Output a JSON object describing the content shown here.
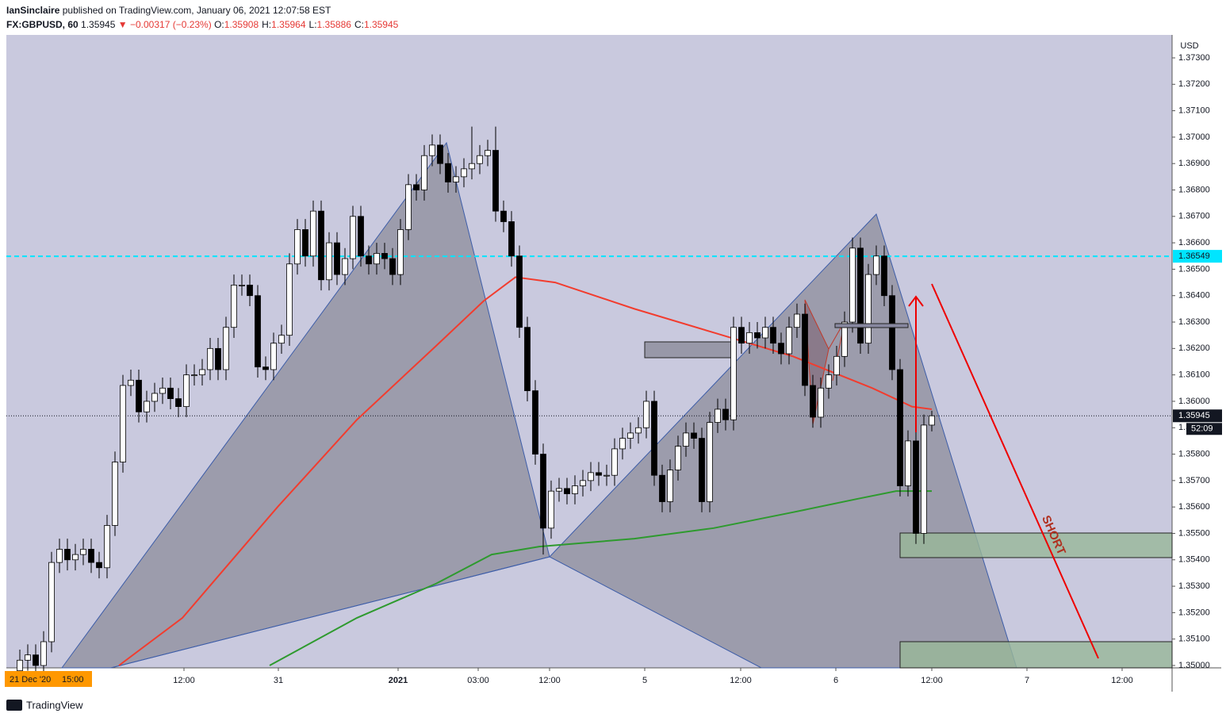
{
  "header": {
    "author": "IanSinclaire",
    "published": "published on TradingView.com, January 06, 2021 12:07:58 EST",
    "symbol": "FX:GBPUSD, 60",
    "last": "1.35945",
    "change": "▼ −0.00317 (−0.23%)",
    "ohlc": [
      {
        "label": "O:",
        "value": "1.35908"
      },
      {
        "label": "H:",
        "value": "1.35964"
      },
      {
        "label": "L:",
        "value": "1.35886"
      },
      {
        "label": "C:",
        "value": "1.35945"
      }
    ]
  },
  "chart_data": {
    "type": "candlestick",
    "currency": "USD",
    "up_color": "#ffffff",
    "down_color": "#000000",
    "xlim": [
      -1.7,
      145.3
    ],
    "ylim": [
      1.34991,
      1.37387
    ],
    "xticks": [
      {
        "value": 20.7,
        "label": "12:00"
      },
      {
        "value": 32.6,
        "label": "31"
      },
      {
        "value": 47.7,
        "label": "2021"
      },
      {
        "value": 57.8,
        "label": "03:00"
      },
      {
        "value": 66.8,
        "label": "12:00"
      },
      {
        "value": 78.8,
        "label": "5"
      },
      {
        "value": 90.9,
        "label": "12:00"
      },
      {
        "value": 102.9,
        "label": "6"
      },
      {
        "value": 115,
        "label": "12:00"
      },
      {
        "value": 127,
        "label": "7"
      },
      {
        "value": 139,
        "label": "12:00"
      }
    ],
    "yticks": [
      {
        "value": 1.35,
        "label": "1.35000"
      },
      {
        "value": 1.351,
        "label": "1.35100"
      },
      {
        "value": 1.352,
        "label": "1.35200"
      },
      {
        "value": 1.353,
        "label": "1.35300"
      },
      {
        "value": 1.354,
        "label": "1.35400"
      },
      {
        "value": 1.355,
        "label": "1.35500"
      },
      {
        "value": 1.356,
        "label": "1.35600"
      },
      {
        "value": 1.357,
        "label": "1.35700"
      },
      {
        "value": 1.358,
        "label": "1.35800"
      },
      {
        "value": 1.359,
        "label": "1.35900"
      },
      {
        "value": 1.36,
        "label": "1.36000"
      },
      {
        "value": 1.361,
        "label": "1.36100"
      },
      {
        "value": 1.362,
        "label": "1.36200"
      },
      {
        "value": 1.363,
        "label": "1.36300"
      },
      {
        "value": 1.364,
        "label": "1.36400"
      },
      {
        "value": 1.365,
        "label": "1.36500"
      },
      {
        "value": 1.366,
        "label": "1.36600"
      },
      {
        "value": 1.367,
        "label": "1.36700"
      },
      {
        "value": 1.368,
        "label": "1.36800"
      },
      {
        "value": 1.369,
        "label": "1.36900"
      },
      {
        "value": 1.37,
        "label": "1.37000"
      },
      {
        "value": 1.371,
        "label": "1.37100"
      },
      {
        "value": 1.372,
        "label": "1.37200"
      },
      {
        "value": 1.373,
        "label": "1.37300"
      }
    ],
    "open": [
      1.3498,
      1.3502,
      1.3504,
      1.35,
      1.3509,
      1.3539,
      1.3544,
      1.354,
      1.3542,
      1.3544,
      1.3539,
      1.3537,
      1.3553,
      1.3577,
      1.3606,
      1.3608,
      1.3596,
      1.36,
      1.3603,
      1.3605,
      1.3601,
      1.3598,
      1.361,
      1.361,
      1.3612,
      1.362,
      1.3612,
      1.3628,
      1.3644,
      1.3644,
      1.364,
      1.3613,
      1.3612,
      1.3622,
      1.3625,
      1.3652,
      1.3665,
      1.3655,
      1.3672,
      1.3646,
      1.366,
      1.3648,
      1.3654,
      1.367,
      1.3655,
      1.3652,
      1.3656,
      1.3654,
      1.3648,
      1.3665,
      1.3682,
      1.368,
      1.3693,
      1.3697,
      1.369,
      1.3683,
      1.3685,
      1.3688,
      1.369,
      1.3693,
      1.3695,
      1.3672,
      1.3668,
      1.3655,
      1.3628,
      1.3604,
      1.358,
      1.3552,
      1.3566,
      1.3567,
      1.3565,
      1.3568,
      1.357,
      1.3573,
      1.3572,
      1.3572,
      1.3582,
      1.3586,
      1.3588,
      1.359,
      1.36,
      1.3572,
      1.3562,
      1.3574,
      1.3583,
      1.3588,
      1.3586,
      1.3562,
      1.3592,
      1.3597,
      1.3593,
      1.3628,
      1.3622,
      1.3626,
      1.3624,
      1.3628,
      1.3622,
      1.3618,
      1.3628,
      1.3633,
      1.3606,
      1.3594,
      1.3605,
      1.361,
      1.3617,
      1.363,
      1.3658,
      1.3622,
      1.3648,
      1.3655,
      1.364,
      1.3612,
      1.3568,
      1.3585,
      1.355,
      1.3591
    ],
    "high": [
      1.3506,
      1.3508,
      1.3508,
      1.3513,
      1.3543,
      1.3548,
      1.3548,
      1.3546,
      1.3548,
      1.3548,
      1.3543,
      1.3557,
      1.3581,
      1.361,
      1.3612,
      1.3612,
      1.3604,
      1.3607,
      1.3609,
      1.3609,
      1.3605,
      1.3614,
      1.3614,
      1.3616,
      1.3624,
      1.3624,
      1.3632,
      1.3648,
      1.3648,
      1.3648,
      1.3644,
      1.3617,
      1.3626,
      1.3629,
      1.3656,
      1.3669,
      1.3669,
      1.3676,
      1.3676,
      1.3664,
      1.3664,
      1.3658,
      1.3674,
      1.3674,
      1.3659,
      1.366,
      1.366,
      1.3658,
      1.3669,
      1.3686,
      1.3686,
      1.3697,
      1.3701,
      1.3701,
      1.3694,
      1.3689,
      1.3692,
      1.3704,
      1.3697,
      1.3699,
      1.3704,
      1.3676,
      1.3672,
      1.3659,
      1.3632,
      1.3608,
      1.3584,
      1.357,
      1.3571,
      1.3571,
      1.3572,
      1.3574,
      1.3577,
      1.3577,
      1.3576,
      1.3586,
      1.359,
      1.3592,
      1.3594,
      1.3604,
      1.3604,
      1.3576,
      1.3578,
      1.3587,
      1.3592,
      1.3592,
      1.359,
      1.3596,
      1.3601,
      1.3601,
      1.3632,
      1.3632,
      1.363,
      1.363,
      1.3632,
      1.3632,
      1.3626,
      1.3632,
      1.3637,
      1.3637,
      1.361,
      1.3609,
      1.3614,
      1.3621,
      1.3634,
      1.3662,
      1.3662,
      1.3652,
      1.3659,
      1.3659,
      1.3644,
      1.3616,
      1.3589,
      1.3589,
      1.3595,
      1.35964
    ],
    "low": [
      1.3494,
      1.3498,
      1.3496,
      1.3496,
      1.3505,
      1.3535,
      1.3536,
      1.3536,
      1.3538,
      1.3535,
      1.3533,
      1.3533,
      1.3549,
      1.3573,
      1.3602,
      1.3592,
      1.3592,
      1.3596,
      1.3599,
      1.3597,
      1.3594,
      1.3594,
      1.3606,
      1.3606,
      1.3608,
      1.3608,
      1.3608,
      1.3624,
      1.364,
      1.3636,
      1.3609,
      1.3608,
      1.3608,
      1.3618,
      1.3621,
      1.3648,
      1.3651,
      1.3651,
      1.3642,
      1.3642,
      1.3644,
      1.3644,
      1.365,
      1.3651,
      1.3648,
      1.3648,
      1.365,
      1.3644,
      1.3644,
      1.3661,
      1.3676,
      1.3676,
      1.3689,
      1.3686,
      1.3679,
      1.3679,
      1.3681,
      1.3684,
      1.3686,
      1.3689,
      1.3668,
      1.3664,
      1.3651,
      1.3624,
      1.36,
      1.3576,
      1.3542,
      1.3548,
      1.3562,
      1.3561,
      1.3561,
      1.3564,
      1.3566,
      1.3568,
      1.3568,
      1.3568,
      1.3578,
      1.3582,
      1.3584,
      1.3586,
      1.3568,
      1.3558,
      1.3558,
      1.357,
      1.3579,
      1.3582,
      1.3558,
      1.3558,
      1.3588,
      1.3589,
      1.3589,
      1.3618,
      1.3618,
      1.362,
      1.362,
      1.3618,
      1.3614,
      1.3614,
      1.3624,
      1.3602,
      1.359,
      1.359,
      1.3601,
      1.3606,
      1.3613,
      1.3626,
      1.3618,
      1.3618,
      1.3644,
      1.3636,
      1.3608,
      1.3564,
      1.3564,
      1.3546,
      1.3546,
      1.35886
    ],
    "close": [
      1.3502,
      1.3504,
      1.35,
      1.3509,
      1.3539,
      1.3544,
      1.354,
      1.3542,
      1.3544,
      1.3539,
      1.3537,
      1.3553,
      1.3577,
      1.3606,
      1.3608,
      1.3596,
      1.36,
      1.3603,
      1.3605,
      1.3601,
      1.3598,
      1.361,
      1.361,
      1.3612,
      1.362,
      1.3612,
      1.3628,
      1.3644,
      1.3644,
      1.364,
      1.3613,
      1.3612,
      1.3622,
      1.3625,
      1.3652,
      1.3665,
      1.3655,
      1.3672,
      1.3646,
      1.366,
      1.3648,
      1.3654,
      1.367,
      1.3655,
      1.3652,
      1.3656,
      1.3654,
      1.3648,
      1.3665,
      1.3682,
      1.368,
      1.3693,
      1.3697,
      1.369,
      1.3683,
      1.3685,
      1.3688,
      1.369,
      1.3693,
      1.3695,
      1.3672,
      1.3668,
      1.3655,
      1.3628,
      1.3604,
      1.358,
      1.3552,
      1.3566,
      1.3567,
      1.3565,
      1.3568,
      1.357,
      1.3573,
      1.3572,
      1.3572,
      1.3582,
      1.3586,
      1.3588,
      1.359,
      1.36,
      1.3572,
      1.3562,
      1.3574,
      1.3583,
      1.3588,
      1.3586,
      1.3562,
      1.3592,
      1.3597,
      1.3593,
      1.3628,
      1.3622,
      1.3626,
      1.3624,
      1.3628,
      1.3622,
      1.3618,
      1.3628,
      1.3633,
      1.3606,
      1.3594,
      1.3605,
      1.361,
      1.3617,
      1.363,
      1.3658,
      1.3622,
      1.3648,
      1.3655,
      1.364,
      1.3612,
      1.3568,
      1.3585,
      1.355,
      1.3591,
      1.35945
    ],
    "series": [
      {
        "color": "#f23c2e",
        "x": [
          12.5,
          20.5,
          32.5,
          42.5,
          52.5,
          58.5,
          62.5,
          67.5,
          77.5,
          87.5,
          97.5,
          102.5,
          107.5,
          112.5,
          115
        ],
        "values": [
          1.35,
          1.3518,
          1.356,
          1.3593,
          1.3621,
          1.3638,
          1.3647,
          1.3645,
          1.3635,
          1.3626,
          1.3617,
          1.3611,
          1.3605,
          1.3598,
          1.3597
        ]
      },
      {
        "color": "#2e9a2e",
        "x": [
          31.5,
          42.5,
          52.5,
          59.5,
          65.5,
          77.5,
          87.5,
          97.5,
          105.5,
          110.5,
          115
        ],
        "values": [
          1.35,
          1.3518,
          1.3531,
          1.3542,
          1.3545,
          1.3548,
          1.3552,
          1.3558,
          1.3563,
          1.3566,
          1.3566
        ]
      }
    ],
    "hline": {
      "value": 1.36549,
      "color": "#00e5ff"
    },
    "last_price": {
      "value": 1.35945,
      "countdown": "52:09"
    },
    "annotation": "SHORT",
    "start_label": "21 Dec '20",
    "start_time": "15:00",
    "brand": "TradingView"
  }
}
